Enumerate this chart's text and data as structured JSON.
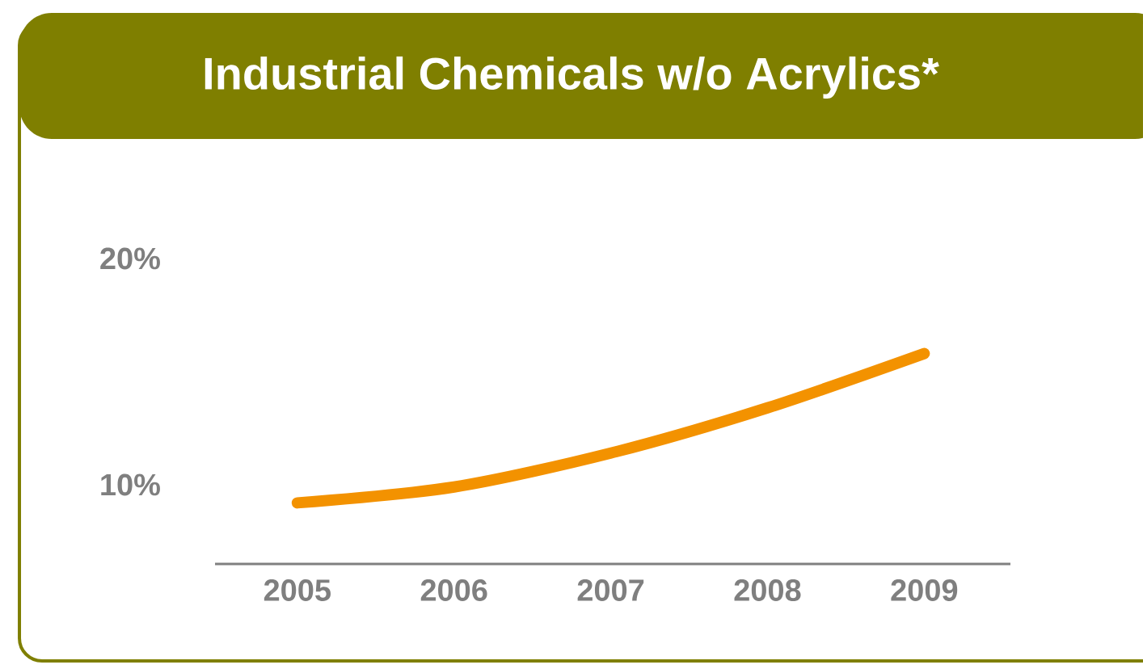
{
  "chart_data": {
    "type": "line",
    "title": "Industrial Chemicals w/o Acrylics*",
    "categories": [
      "2005",
      "2006",
      "2007",
      "2008",
      "2009"
    ],
    "series": [
      {
        "color": "#f39200",
        "values": [
          9.2,
          9.9,
          11.4,
          13.4,
          15.8
        ]
      }
    ],
    "ylim": [
      6.5,
      20
    ],
    "yticks": [
      {
        "value": 10,
        "label": "10%"
      },
      {
        "value": 20,
        "label": "20%"
      }
    ],
    "marker": "none",
    "line_style": "solid"
  }
}
